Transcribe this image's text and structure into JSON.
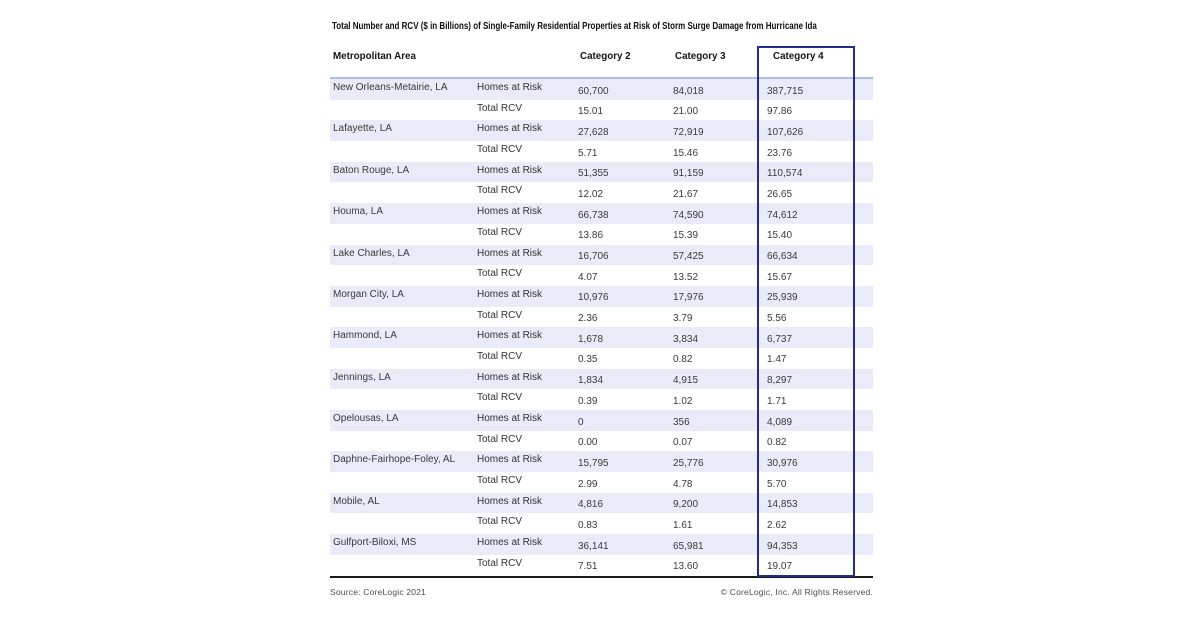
{
  "chart_data": {
    "type": "table",
    "title": "Total Number and RCV ($ in Billions) of Single-Family Residential Properties at Risk of Storm Surge Damage from Hurricane Ida",
    "columns": [
      "Metropolitan Area",
      "Category 2",
      "Category 3",
      "Category 4"
    ],
    "metrics": [
      "Homes at Risk",
      "Total RCV"
    ],
    "highlighted_column": "Category 4",
    "metros": [
      {
        "name": "New Orleans-Metairie, LA",
        "homes_at_risk": [
          "60,700",
          "84,018",
          "387,715"
        ],
        "total_rcv": [
          "15.01",
          "21.00",
          "97.86"
        ]
      },
      {
        "name": "Lafayette, LA",
        "homes_at_risk": [
          "27,628",
          "72,919",
          "107,626"
        ],
        "total_rcv": [
          "5.71",
          "15.46",
          "23.76"
        ]
      },
      {
        "name": "Baton Rouge, LA",
        "homes_at_risk": [
          "51,355",
          "91,159",
          "110,574"
        ],
        "total_rcv": [
          "12.02",
          "21.67",
          "26.65"
        ]
      },
      {
        "name": "Houma, LA",
        "homes_at_risk": [
          "66,738",
          "74,590",
          "74,612"
        ],
        "total_rcv": [
          "13.86",
          "15.39",
          "15.40"
        ]
      },
      {
        "name": "Lake Charles, LA",
        "homes_at_risk": [
          "16,706",
          "57,425",
          "66,634"
        ],
        "total_rcv": [
          "4.07",
          "13.52",
          "15.67"
        ]
      },
      {
        "name": "Morgan City, LA",
        "homes_at_risk": [
          "10,976",
          "17,976",
          "25,939"
        ],
        "total_rcv": [
          "2.36",
          "3.79",
          "5.56"
        ]
      },
      {
        "name": "Hammond, LA",
        "homes_at_risk": [
          "1,678",
          "3,834",
          "6,737"
        ],
        "total_rcv": [
          "0.35",
          "0.82",
          "1.47"
        ]
      },
      {
        "name": "Jennings, LA",
        "homes_at_risk": [
          "1,834",
          "4,915",
          "8,297"
        ],
        "total_rcv": [
          "0.39",
          "1.02",
          "1.71"
        ]
      },
      {
        "name": "Opelousas, LA",
        "homes_at_risk": [
          "0",
          "356",
          "4,089"
        ],
        "total_rcv": [
          "0.00",
          "0.07",
          "0.82"
        ]
      },
      {
        "name": "Daphne-Fairhope-Foley, AL",
        "homes_at_risk": [
          "15,795",
          "25,776",
          "30,976"
        ],
        "total_rcv": [
          "2.99",
          "4.78",
          "5.70"
        ]
      },
      {
        "name": "Mobile, AL",
        "homes_at_risk": [
          "4,816",
          "9,200",
          "14,853"
        ],
        "total_rcv": [
          "0.83",
          "1.61",
          "2.62"
        ]
      },
      {
        "name": "Gulfport-Biloxi, MS",
        "homes_at_risk": [
          "36,141",
          "65,981",
          "94,353"
        ],
        "total_rcv": [
          "7.51",
          "13.60",
          "19.07"
        ]
      }
    ]
  },
  "footer": {
    "source": "Source: CoreLogic 2021",
    "copyright": "© CoreLogic, Inc. All Rights Reserved."
  },
  "colors": {
    "stripe": "#e9ebf8",
    "header_rule": "#b3bee8",
    "highlight_border": "#232e8c",
    "bottom_rule": "#1b1b1b"
  }
}
